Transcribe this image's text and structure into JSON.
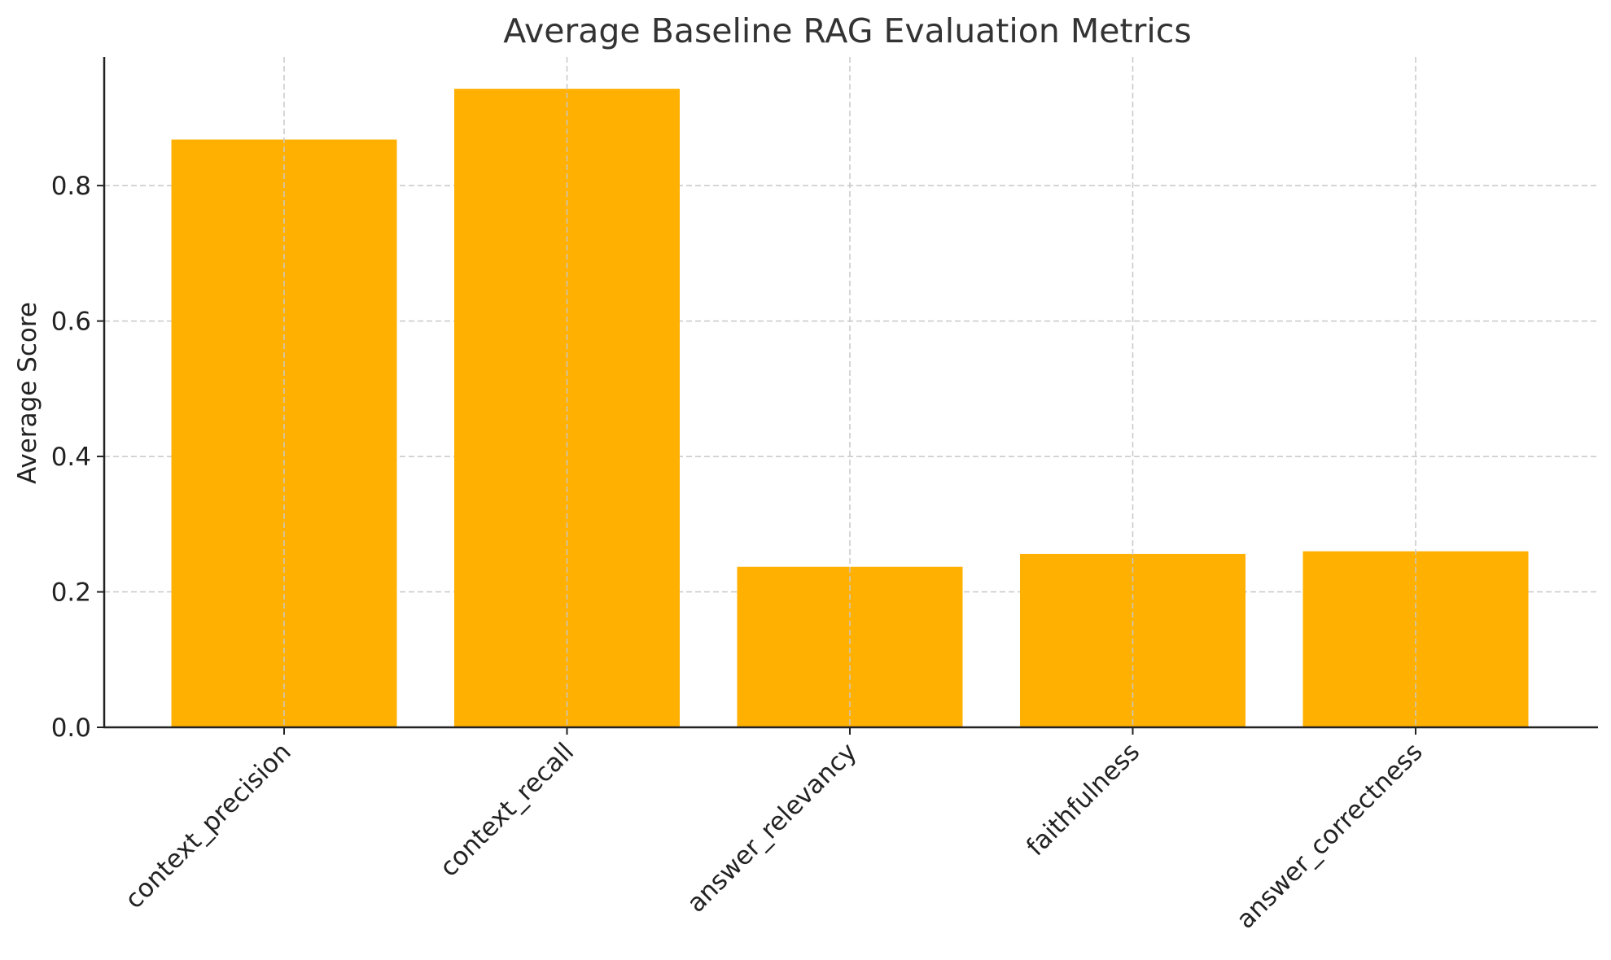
{
  "chart_data": {
    "type": "bar",
    "title": "Average Baseline RAG Evaluation Metrics",
    "xlabel": "",
    "ylabel": "Average Score",
    "categories": [
      "context_precision",
      "context_recall",
      "answer_relevancy",
      "faithfulness",
      "answer_correctness"
    ],
    "values": [
      0.868,
      0.943,
      0.237,
      0.256,
      0.26
    ],
    "ylim": [
      0,
      0.99
    ],
    "yticks": [
      0.0,
      0.2,
      0.4,
      0.6,
      0.8
    ],
    "ytick_labels": [
      "0.0",
      "0.2",
      "0.4",
      "0.6",
      "0.8"
    ],
    "grid": true,
    "bar_color": "#FFB000"
  }
}
